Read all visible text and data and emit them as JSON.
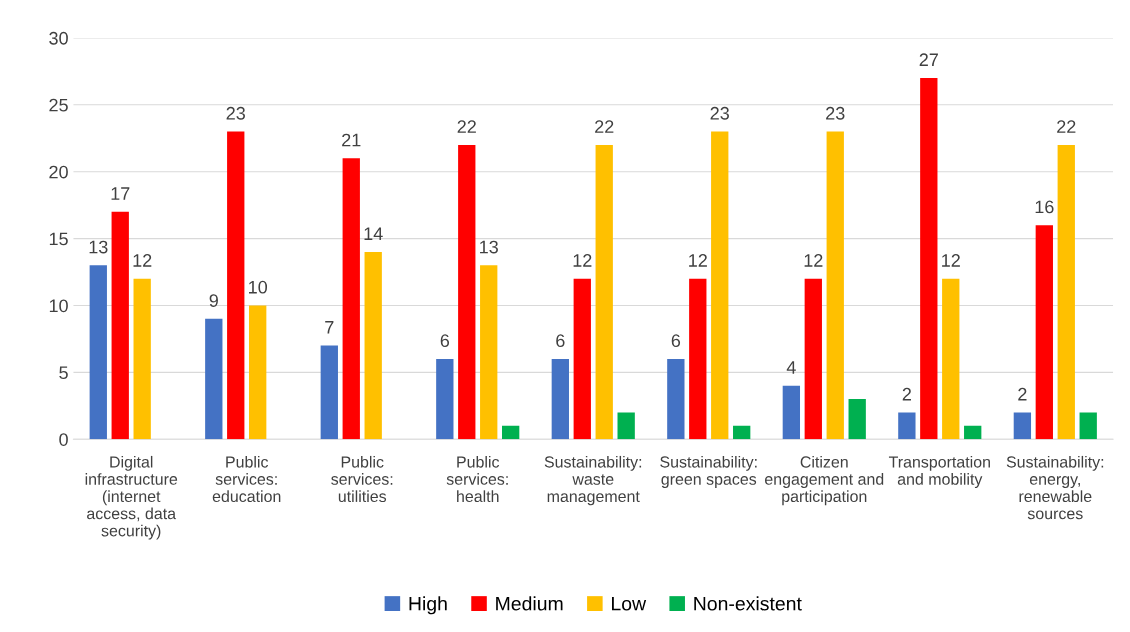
{
  "chart_data": {
    "type": "bar",
    "categories": [
      "Digital infrastructure (internet access, data security)",
      "Public services: education",
      "Public services: utilities",
      "Public services: health",
      "Sustainability: waste management",
      "Sustainability: green spaces",
      "Citizen engagement and participation",
      "Transportation and mobility",
      "Sustainability: energy, renewable sources"
    ],
    "series": [
      {
        "name": "High",
        "color": "#4472c4",
        "values": [
          13,
          9,
          7,
          6,
          6,
          6,
          4,
          2,
          2
        ],
        "value_labels": [
          "13",
          "9",
          "7",
          "6",
          "6",
          "6",
          "4",
          "2",
          "2"
        ]
      },
      {
        "name": "Medium",
        "color": "#ff0000",
        "values": [
          17,
          23,
          21,
          22,
          12,
          12,
          12,
          27,
          16
        ],
        "value_labels": [
          "17",
          "23",
          "21",
          "22",
          "12",
          "12",
          "12",
          "27",
          "16"
        ]
      },
      {
        "name": "Low",
        "color": "#ffc000",
        "values": [
          12,
          10,
          14,
          13,
          22,
          23,
          23,
          12,
          22
        ],
        "value_labels": [
          "12",
          "10",
          "14",
          "13",
          "22",
          "23",
          "23",
          "12",
          "22"
        ]
      },
      {
        "name": "Non-existent",
        "color": "#00b050",
        "values": [
          0,
          0,
          0,
          1,
          2,
          1,
          3,
          1,
          2
        ],
        "value_labels": [
          null,
          null,
          null,
          null,
          null,
          null,
          null,
          null,
          null
        ]
      }
    ],
    "ylim": [
      0,
      30
    ],
    "yticks": [
      0,
      5,
      10,
      15,
      20,
      25,
      30
    ],
    "grid": "y",
    "legend": "bottom"
  }
}
